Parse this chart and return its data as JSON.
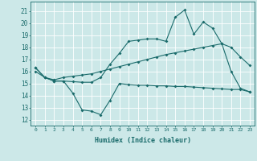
{
  "xlabel": "Humidex (Indice chaleur)",
  "bg_color": "#cce8e8",
  "grid_color": "#ffffff",
  "line_color": "#1a6b6b",
  "xlim": [
    -0.5,
    23.5
  ],
  "ylim": [
    11.5,
    21.8
  ],
  "yticks": [
    12,
    13,
    14,
    15,
    16,
    17,
    18,
    19,
    20,
    21
  ],
  "xticks": [
    0,
    1,
    2,
    3,
    4,
    5,
    6,
    7,
    8,
    9,
    10,
    11,
    12,
    13,
    14,
    15,
    16,
    17,
    18,
    19,
    20,
    21,
    22,
    23
  ],
  "series1_y": [
    16.3,
    15.5,
    15.2,
    15.2,
    14.2,
    12.8,
    12.7,
    12.4,
    13.6,
    15.0,
    14.9,
    14.85,
    14.85,
    14.8,
    14.8,
    14.75,
    14.75,
    14.7,
    14.65,
    14.6,
    14.55,
    14.5,
    14.5,
    14.3
  ],
  "series2_y": [
    16.3,
    15.5,
    15.2,
    15.2,
    15.15,
    15.1,
    15.1,
    15.5,
    16.6,
    17.5,
    18.5,
    18.6,
    18.7,
    18.7,
    18.5,
    20.5,
    21.1,
    19.1,
    20.1,
    19.6,
    18.3,
    16.0,
    14.6,
    14.3
  ],
  "series3_y": [
    16.0,
    15.5,
    15.3,
    15.5,
    15.6,
    15.7,
    15.8,
    16.0,
    16.2,
    16.4,
    16.6,
    16.8,
    17.0,
    17.2,
    17.4,
    17.55,
    17.7,
    17.85,
    18.0,
    18.15,
    18.3,
    18.0,
    17.2,
    16.5
  ]
}
